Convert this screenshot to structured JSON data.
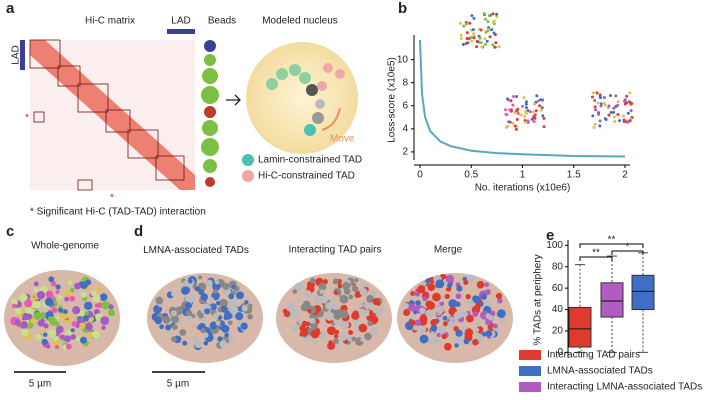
{
  "panel_a": {
    "label": "a",
    "matrix_title": "Hi-C matrix",
    "lad_top": "LAD",
    "lad_left": "LAD",
    "beads_title": "Beads",
    "model_title": "Modeled nucleus",
    "move": "Move",
    "legend": [
      "Lamin-constrained TAD",
      "Hi-C-constrained TAD"
    ],
    "star": "*",
    "footnote": "* Significant Hi-C (TAD-TAD) interaction"
  },
  "panel_c": {
    "label": "c",
    "title": "Whole-genome",
    "scale": "5 µm"
  },
  "panel_d": {
    "label": "d",
    "titles": [
      "LMNA-associated TADs",
      "Interacting TAD pairs",
      "Merge"
    ],
    "scale": "5 µm"
  },
  "chart_data": [
    {
      "type": "line",
      "label": "b",
      "ylabel": "Loss-score (x10e5)",
      "xlabel": "No. iterations (x10e6)",
      "color": "#5aa7c0",
      "x": [
        0,
        0.02,
        0.05,
        0.1,
        0.2,
        0.3,
        0.5,
        0.75,
        1,
        1.5,
        2
      ],
      "values": [
        11.7,
        7,
        5,
        3.8,
        2.9,
        2.5,
        2.1,
        1.9,
        1.8,
        1.65,
        1.6
      ],
      "xlim": [
        0,
        2
      ],
      "xticks": [
        0,
        0.5,
        1,
        1.5,
        2
      ],
      "ylim": [
        1.3,
        11.7
      ],
      "yticks": [
        2,
        4,
        6,
        8,
        10
      ]
    },
    {
      "type": "box",
      "label": "e",
      "ylabel": "% TADs at periphery",
      "ylim": [
        -5,
        105
      ],
      "yticks": [
        0,
        20,
        40,
        60,
        80,
        100
      ],
      "boxes": [
        {
          "name": "Interacting TAD pairs",
          "color": "#e03a2f",
          "min": 0,
          "q1": 5,
          "median": 22,
          "q3": 42,
          "max": 82
        },
        {
          "name": "Interacting LMNA-associated TADs",
          "color": "#b05cc0",
          "min": 0,
          "q1": 33,
          "median": 48,
          "q3": 65,
          "max": 90
        },
        {
          "name": "LMNA-associated TADs",
          "color": "#3f6fc4",
          "min": 0,
          "q1": 40,
          "median": 57,
          "q3": 72,
          "max": 93
        }
      ],
      "annotations": [
        "**",
        "**",
        "*"
      ]
    }
  ]
}
